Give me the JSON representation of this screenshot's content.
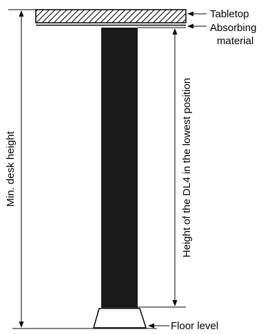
{
  "labels": {
    "tabletop": "Tabletop",
    "absorbing_line1": "Absorbing",
    "absorbing_line2": "material",
    "floor": "Floor level",
    "min_height": "Min. desk height",
    "dl4_height": "Height of the DL4 in the lowest position"
  },
  "colors": {
    "line": "#000000",
    "column": "#1a1a1a",
    "background": "#ffffff"
  }
}
